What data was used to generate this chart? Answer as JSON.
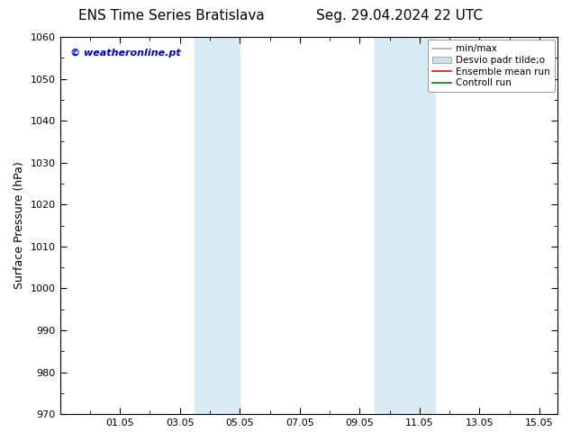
{
  "title_left": "ENS Time Series Bratislava",
  "title_right": "Seg. 29.04.2024 22 UTC",
  "ylabel": "Surface Pressure (hPa)",
  "ylim": [
    970,
    1060
  ],
  "yticks": [
    970,
    980,
    990,
    1000,
    1010,
    1020,
    1030,
    1040,
    1050,
    1060
  ],
  "xtick_labels": [
    "01.05",
    "03.05",
    "05.05",
    "07.05",
    "09.05",
    "11.05",
    "13.05",
    "15.05"
  ],
  "xtick_positions": [
    2,
    4,
    6,
    8,
    10,
    12,
    14,
    16
  ],
  "xlim": [
    0,
    16.6
  ],
  "shaded_regions": [
    {
      "x_start": 4.5,
      "x_end": 6.0
    },
    {
      "x_start": 10.5,
      "x_end": 12.5
    }
  ],
  "shade_color": "#daeaf5",
  "background_color": "#ffffff",
  "plot_bg_color": "#ffffff",
  "watermark_text": "© weatheronline.pt",
  "watermark_color": "#0000bb",
  "legend_label_minmax": "min/max",
  "legend_label_desvio": "Desvio padr tilde;o",
  "legend_label_ensemble": "Ensemble mean run",
  "legend_label_controll": "Controll run",
  "color_minmax": "#aaaaaa",
  "color_desvio": "#cce0f0",
  "color_ensemble": "#ff0000",
  "color_controll": "#008800",
  "title_fontsize": 11,
  "ylabel_fontsize": 9,
  "tick_fontsize": 8,
  "watermark_fontsize": 8,
  "legend_fontsize": 7.5
}
